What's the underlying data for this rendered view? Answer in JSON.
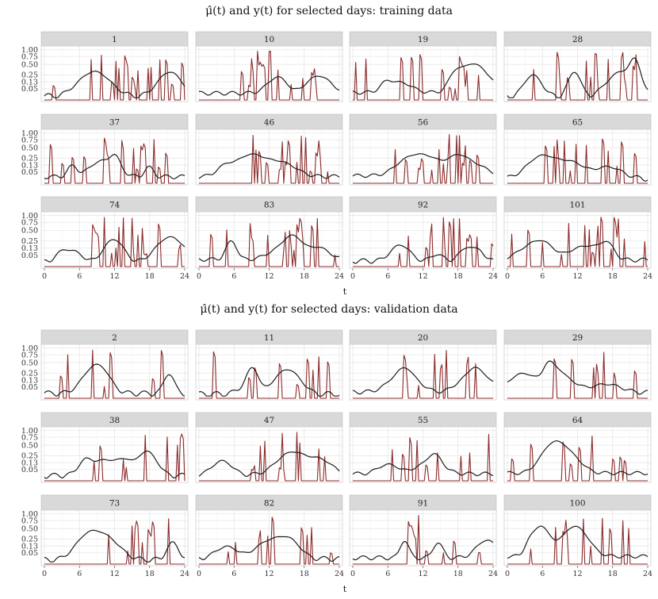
{
  "chart_data": [
    {
      "type": "line",
      "title": "μ̂(t)  and  y(t)  for selected days: training data",
      "xlabel": "t",
      "ylabel": "",
      "xlim": [
        0,
        24
      ],
      "x_ticks": [
        "0",
        "6",
        "12",
        "18",
        "24"
      ],
      "y_ticks": [
        "1.00",
        "0.75",
        "0.50",
        "0.25",
        "0.13",
        "0.05"
      ],
      "y_tick_values": [
        1.0,
        0.75,
        0.5,
        0.25,
        0.13,
        0.05
      ],
      "series": [
        {
          "name": "μ̂(t)",
          "color": "#1f1f1f"
        },
        {
          "name": "y(t)",
          "color": "#8b2a2a"
        }
      ],
      "panels": [
        "1",
        "10",
        "19",
        "28",
        "37",
        "46",
        "56",
        "65",
        "74",
        "83",
        "92",
        "101"
      ]
    },
    {
      "type": "line",
      "title": "μ̂(t)  and  y(t)  for selected days: validation data",
      "xlabel": "t",
      "ylabel": "",
      "xlim": [
        0,
        24
      ],
      "x_ticks": [
        "0",
        "6",
        "12",
        "18",
        "24"
      ],
      "y_ticks": [
        "1.00",
        "0.75",
        "0.50",
        "0.25",
        "0.13",
        "0.05"
      ],
      "y_tick_values": [
        1.0,
        0.75,
        0.5,
        0.25,
        0.13,
        0.05
      ],
      "series": [
        {
          "name": "μ̂(t)",
          "color": "#1f1f1f"
        },
        {
          "name": "y(t)",
          "color": "#8b2a2a"
        }
      ],
      "panels": [
        "2",
        "11",
        "20",
        "29",
        "38",
        "47",
        "55",
        "64",
        "73",
        "82",
        "91",
        "100"
      ]
    }
  ]
}
